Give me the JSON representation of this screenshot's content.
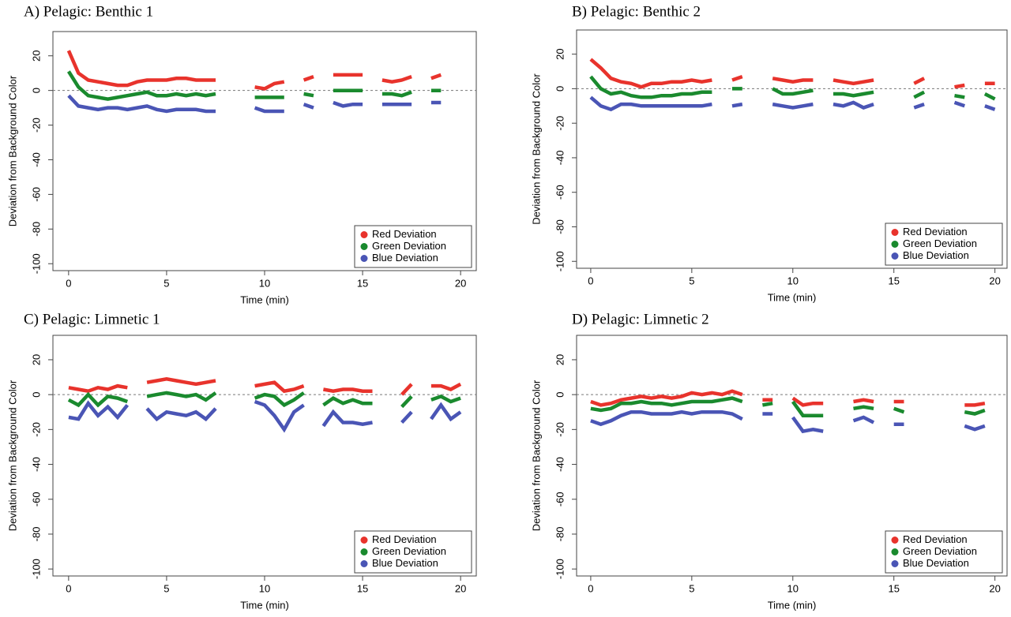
{
  "chart_data": [
    {
      "type": "line",
      "title": "A) Pelagic: Benthic 1",
      "x_label": "Time (min)",
      "y_label": "Deviation from Background Color",
      "x": [
        0,
        0.5,
        1,
        1.5,
        2,
        2.5,
        3,
        3.5,
        4,
        4.5,
        5,
        5.5,
        6,
        6.5,
        7,
        7.5,
        8,
        8.5,
        9,
        9.5,
        10,
        10.5,
        11,
        11.5,
        12,
        12.5,
        13,
        13.5,
        14,
        14.5,
        15,
        15.5,
        16,
        16.5,
        17,
        17.5,
        18,
        18.5,
        19,
        19.5,
        20
      ],
      "xlim": [
        -0.8,
        20.8
      ],
      "xticks": [
        0,
        5,
        10,
        15,
        20
      ],
      "ylim": [
        -104,
        34
      ],
      "yticks": [
        -100,
        -80,
        -60,
        -40,
        -20,
        0,
        20
      ],
      "hline": 0,
      "legend": "bottom-right",
      "series": [
        {
          "name": "Red Deviation",
          "color": "#e8332c",
          "values": [
            23,
            10,
            6,
            5,
            4,
            3,
            3,
            5,
            6,
            6,
            6,
            7,
            7,
            6,
            6,
            6,
            null,
            null,
            null,
            2,
            1,
            4,
            5,
            null,
            6,
            8,
            null,
            9,
            9,
            9,
            9,
            null,
            6,
            5,
            6,
            8,
            null,
            7,
            9,
            null,
            null
          ]
        },
        {
          "name": "Green Deviation",
          "color": "#1a8a2e",
          "values": [
            11,
            2,
            -3,
            -4,
            -5,
            -4,
            -3,
            -2,
            -1,
            -3,
            -3,
            -2,
            -3,
            -2,
            -3,
            -2,
            null,
            null,
            null,
            -4,
            -4,
            -4,
            -4,
            null,
            -2,
            -3,
            null,
            0,
            0,
            0,
            0,
            null,
            -2,
            -2,
            -3,
            -1,
            null,
            0,
            0,
            null,
            null
          ]
        },
        {
          "name": "Blue Deviation",
          "color": "#4a55b5",
          "values": [
            -3,
            -9,
            -10,
            -11,
            -10,
            -10,
            -11,
            -10,
            -9,
            -11,
            -12,
            -11,
            -11,
            -11,
            -12,
            -12,
            null,
            null,
            null,
            -10,
            -12,
            -12,
            -12,
            null,
            -8,
            -10,
            null,
            -7,
            -9,
            -8,
            -8,
            null,
            -8,
            -8,
            -8,
            -8,
            null,
            -7,
            -7,
            null,
            null
          ]
        }
      ]
    },
    {
      "type": "line",
      "title": "B) Pelagic: Benthic 2",
      "x_label": "Time (min)",
      "y_label": "Deviation from Background Color",
      "x": [
        0,
        0.5,
        1,
        1.5,
        2,
        2.5,
        3,
        3.5,
        4,
        4.5,
        5,
        5.5,
        6,
        6.5,
        7,
        7.5,
        8,
        8.5,
        9,
        9.5,
        10,
        10.5,
        11,
        11.5,
        12,
        12.5,
        13,
        13.5,
        14,
        14.5,
        15,
        15.5,
        16,
        16.5,
        17,
        17.5,
        18,
        18.5,
        19,
        19.5,
        20
      ],
      "xlim": [
        -0.7,
        20.6
      ],
      "xticks": [
        0,
        5,
        10,
        15,
        20
      ],
      "ylim": [
        -104,
        34
      ],
      "yticks": [
        -100,
        -80,
        -60,
        -40,
        -20,
        0,
        20
      ],
      "hline": 0,
      "legend": "bottom-right",
      "series": [
        {
          "name": "Red Deviation",
          "color": "#e8332c",
          "values": [
            17,
            12,
            6,
            4,
            3,
            1,
            3,
            3,
            4,
            4,
            5,
            4,
            5,
            null,
            5,
            7,
            null,
            null,
            6,
            5,
            4,
            5,
            5,
            null,
            5,
            4,
            3,
            4,
            5,
            null,
            null,
            null,
            3,
            6,
            null,
            null,
            1,
            2,
            null,
            3,
            3
          ]
        },
        {
          "name": "Green Deviation",
          "color": "#1a8a2e",
          "values": [
            7,
            0,
            -3,
            -2,
            -4,
            -5,
            -5,
            -4,
            -4,
            -3,
            -3,
            -2,
            -2,
            null,
            0,
            0,
            null,
            null,
            0,
            -3,
            -3,
            -2,
            -1,
            null,
            -3,
            -3,
            -4,
            -3,
            -2,
            null,
            null,
            null,
            -5,
            -2,
            null,
            null,
            -4,
            -5,
            null,
            -3,
            -6
          ]
        },
        {
          "name": "Blue Deviation",
          "color": "#4a55b5",
          "values": [
            -5,
            -10,
            -12,
            -9,
            -9,
            -10,
            -10,
            -10,
            -10,
            -10,
            -10,
            -10,
            -9,
            null,
            -10,
            -9,
            null,
            null,
            -9,
            -10,
            -11,
            -10,
            -9,
            null,
            -9,
            -10,
            -8,
            -11,
            -9,
            null,
            null,
            null,
            -11,
            -9,
            null,
            null,
            -8,
            -10,
            null,
            -10,
            -12
          ]
        }
      ]
    },
    {
      "type": "line",
      "title": "C) Pelagic: Limnetic 1",
      "x_label": "Time (min)",
      "y_label": "Deviation from Background Color",
      "x": [
        0,
        0.5,
        1,
        1.5,
        2,
        2.5,
        3,
        3.5,
        4,
        4.5,
        5,
        5.5,
        6,
        6.5,
        7,
        7.5,
        8,
        8.5,
        9,
        9.5,
        10,
        10.5,
        11,
        11.5,
        12,
        12.5,
        13,
        13.5,
        14,
        14.5,
        15,
        15.5,
        16,
        16.5,
        17,
        17.5,
        18,
        18.5,
        19,
        19.5,
        20
      ],
      "xlim": [
        -0.8,
        20.8
      ],
      "xticks": [
        0,
        5,
        10,
        15,
        20
      ],
      "ylim": [
        -104,
        34
      ],
      "yticks": [
        -100,
        -80,
        -60,
        -40,
        -20,
        0,
        20
      ],
      "hline": 0,
      "legend": "bottom-right",
      "series": [
        {
          "name": "Red Deviation",
          "color": "#e8332c",
          "values": [
            4,
            3,
            2,
            4,
            3,
            5,
            4,
            null,
            7,
            8,
            9,
            8,
            7,
            6,
            7,
            8,
            null,
            null,
            null,
            5,
            6,
            7,
            2,
            3,
            5,
            null,
            3,
            2,
            3,
            3,
            2,
            2,
            null,
            null,
            0,
            6,
            null,
            5,
            5,
            3,
            6
          ]
        },
        {
          "name": "Green Deviation",
          "color": "#1a8a2e",
          "values": [
            -3,
            -6,
            0,
            -6,
            -1,
            -2,
            -4,
            null,
            -1,
            0,
            1,
            0,
            -1,
            0,
            -3,
            1,
            null,
            null,
            null,
            -2,
            0,
            -1,
            -6,
            -3,
            1,
            null,
            -6,
            -2,
            -5,
            -3,
            -5,
            -5,
            null,
            null,
            -7,
            -1,
            null,
            -3,
            -1,
            -4,
            -2
          ]
        },
        {
          "name": "Blue Deviation",
          "color": "#4a55b5",
          "values": [
            -13,
            -14,
            -5,
            -12,
            -7,
            -13,
            -6,
            null,
            -8,
            -14,
            -10,
            -11,
            -12,
            -10,
            -14,
            -8,
            null,
            null,
            null,
            -4,
            -6,
            -12,
            -20,
            -10,
            -6,
            null,
            -18,
            -10,
            -16,
            -16,
            -17,
            -16,
            null,
            null,
            -16,
            -10,
            null,
            -14,
            -6,
            -14,
            -10
          ]
        }
      ]
    },
    {
      "type": "line",
      "title": "D) Pelagic: Limnetic 2",
      "x_label": "Time (min)",
      "y_label": "Deviation from Background Color",
      "x": [
        0,
        0.5,
        1,
        1.5,
        2,
        2.5,
        3,
        3.5,
        4,
        4.5,
        5,
        5.5,
        6,
        6.5,
        7,
        7.5,
        8,
        8.5,
        9,
        9.5,
        10,
        10.5,
        11,
        11.5,
        12,
        12.5,
        13,
        13.5,
        14,
        14.5,
        15,
        15.5,
        16,
        16.5,
        17,
        17.5,
        18,
        18.5,
        19,
        19.5,
        20
      ],
      "xlim": [
        -0.7,
        20.6
      ],
      "xticks": [
        0,
        5,
        10,
        15,
        20
      ],
      "ylim": [
        -104,
        34
      ],
      "yticks": [
        -100,
        -80,
        -60,
        -40,
        -20,
        0,
        20
      ],
      "hline": 0,
      "legend": "bottom-right",
      "series": [
        {
          "name": "Red Deviation",
          "color": "#e8332c",
          "values": [
            -4,
            -6,
            -5,
            -3,
            -2,
            -1,
            -2,
            -1,
            -2,
            -1,
            1,
            0,
            1,
            0,
            2,
            0,
            null,
            -3,
            -3,
            null,
            -2,
            -6,
            -5,
            -5,
            null,
            null,
            -4,
            -3,
            -4,
            null,
            -4,
            -4,
            null,
            null,
            null,
            null,
            null,
            -6,
            -6,
            -5,
            null
          ]
        },
        {
          "name": "Green Deviation",
          "color": "#1a8a2e",
          "values": [
            -8,
            -9,
            -8,
            -5,
            -5,
            -4,
            -5,
            -5,
            -6,
            -5,
            -4,
            -4,
            -4,
            -3,
            -2,
            -4,
            null,
            -6,
            -5,
            null,
            -4,
            -12,
            -12,
            -12,
            null,
            null,
            -8,
            -7,
            -8,
            null,
            -8,
            -10,
            null,
            null,
            null,
            null,
            null,
            -10,
            -11,
            -9,
            null
          ]
        },
        {
          "name": "Blue Deviation",
          "color": "#4a55b5",
          "values": [
            -15,
            -17,
            -15,
            -12,
            -10,
            -10,
            -11,
            -11,
            -11,
            -10,
            -11,
            -10,
            -10,
            -10,
            -11,
            -14,
            null,
            -11,
            -11,
            null,
            -13,
            -21,
            -20,
            -21,
            null,
            null,
            -15,
            -13,
            -16,
            null,
            -17,
            -17,
            null,
            null,
            null,
            null,
            null,
            -18,
            -20,
            -18,
            null
          ]
        }
      ]
    }
  ]
}
